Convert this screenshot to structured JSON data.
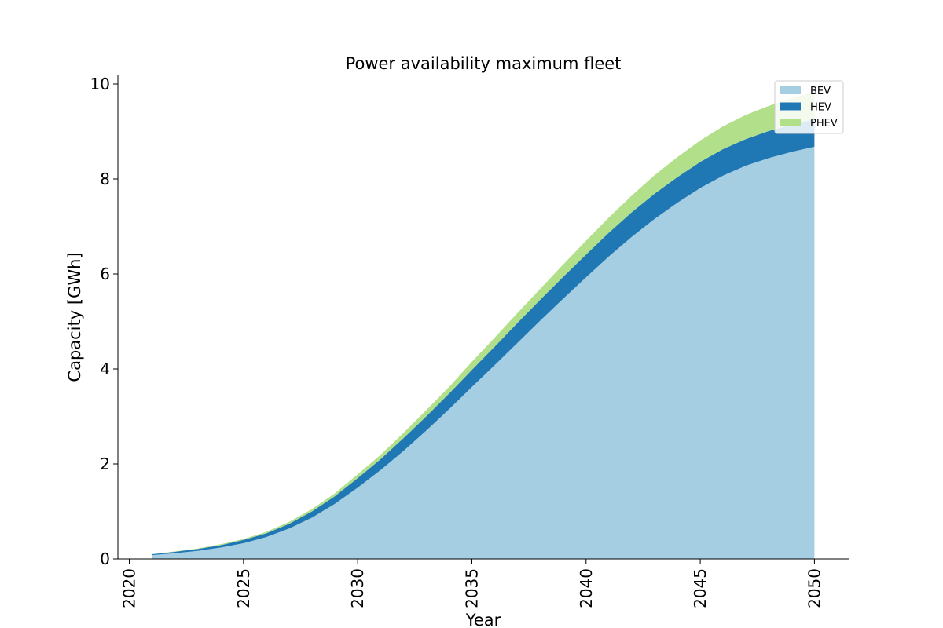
{
  "chart_data": {
    "type": "area",
    "stacked": true,
    "title": "Power availability maximum fleet",
    "xlabel": "Year",
    "ylabel": "Capacity [GWh]",
    "xlim": [
      2019.5,
      2051.5
    ],
    "ylim": [
      0,
      10.2
    ],
    "xticks": [
      2020,
      2025,
      2030,
      2035,
      2040,
      2045,
      2050
    ],
    "yticks": [
      0,
      2,
      4,
      6,
      8,
      10
    ],
    "grid": false,
    "legend_position": "top-right",
    "x": [
      2021,
      2022,
      2023,
      2024,
      2025,
      2026,
      2027,
      2028,
      2029,
      2030,
      2031,
      2032,
      2033,
      2034,
      2035,
      2036,
      2037,
      2038,
      2039,
      2040,
      2041,
      2042,
      2043,
      2044,
      2045,
      2046,
      2047,
      2048,
      2049,
      2050
    ],
    "series": [
      {
        "name": "BEV",
        "color": "#a6cee3",
        "values": [
          0.08,
          0.12,
          0.17,
          0.24,
          0.33,
          0.46,
          0.64,
          0.87,
          1.16,
          1.5,
          1.87,
          2.27,
          2.7,
          3.15,
          3.62,
          4.08,
          4.55,
          5.02,
          5.48,
          5.93,
          6.37,
          6.78,
          7.16,
          7.5,
          7.81,
          8.07,
          8.28,
          8.44,
          8.57,
          8.68
        ]
      },
      {
        "name": "HEV",
        "color": "#1f78b4",
        "values": [
          0.02,
          0.03,
          0.04,
          0.05,
          0.07,
          0.08,
          0.1,
          0.13,
          0.16,
          0.2,
          0.23,
          0.27,
          0.3,
          0.33,
          0.36,
          0.39,
          0.42,
          0.44,
          0.46,
          0.48,
          0.5,
          0.52,
          0.53,
          0.54,
          0.55,
          0.56,
          0.56,
          0.57,
          0.57,
          0.58
        ]
      },
      {
        "name": "PHEV",
        "color": "#b2df8a",
        "values": [
          0.0,
          0.01,
          0.01,
          0.02,
          0.02,
          0.03,
          0.04,
          0.05,
          0.06,
          0.08,
          0.09,
          0.11,
          0.13,
          0.14,
          0.17,
          0.19,
          0.21,
          0.23,
          0.26,
          0.29,
          0.32,
          0.35,
          0.39,
          0.42,
          0.45,
          0.48,
          0.51,
          0.53,
          0.56,
          0.58
        ]
      }
    ]
  }
}
